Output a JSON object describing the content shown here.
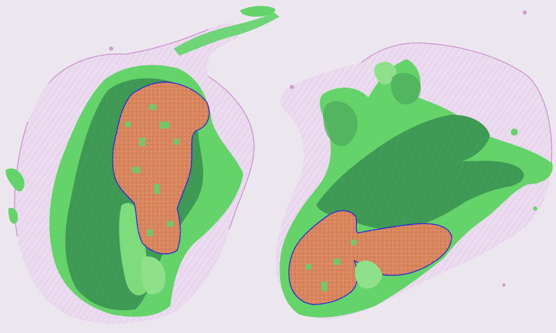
{
  "image": {
    "kind": "histopathology-whole-slide-thumbnail",
    "annotation_overlay": true,
    "colors": {
      "background": "#ece7ef",
      "tissue": "#e9d3ea",
      "tissue_fiber": "#c77dc8",
      "peripheral_region": "#63d36a",
      "inner_region": "#3f9a55",
      "core_region": "#d8855e",
      "core_outline": "#2b2bd6"
    },
    "sections": [
      {
        "name": "left-section"
      },
      {
        "name": "right-section"
      }
    ]
  }
}
